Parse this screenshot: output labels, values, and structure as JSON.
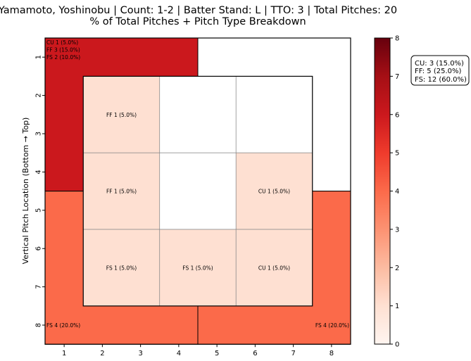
{
  "chart_data": {
    "type": "heatmap",
    "title": "Yamamoto, Yoshinobu | Count: 1-2 | Batter Stand: L | TTO: 3 | Total Pitches: 20",
    "subtitle": "% of Total Pitches + Pitch Type Breakdown",
    "xlabel": "",
    "ylabel": "Vertical Pitch Location (Bottom → Top)",
    "x_ticks": [
      "1",
      "2",
      "3",
      "4",
      "5",
      "6",
      "7",
      "8"
    ],
    "y_ticks": [
      "1",
      "2",
      "3",
      "4",
      "5",
      "6",
      "7",
      "8"
    ],
    "colorbar": {
      "min": 0,
      "max": 8,
      "ticks": [
        "0",
        "1",
        "2",
        "3",
        "4",
        "5",
        "6",
        "7",
        "8"
      ],
      "colormap": "Reds"
    },
    "zones": [
      {
        "zone": "outer-top-left",
        "value": 6,
        "labels": [
          "CU 1 (5.0%)",
          "FF 3 (15.0%)",
          "FS 2 (10.0%)"
        ]
      },
      {
        "zone": "outer-top-right",
        "value": 0,
        "labels": []
      },
      {
        "zone": "outer-bottom-left",
        "value": 4,
        "labels": [
          "FS 4 (20.0%)"
        ]
      },
      {
        "zone": "outer-bottom-right",
        "value": 4,
        "labels": [
          "FS 4 (20.0%)"
        ]
      },
      {
        "zone": "inner-r1-c1",
        "value": 1,
        "labels": [
          "FF 1 (5.0%)"
        ]
      },
      {
        "zone": "inner-r1-c2",
        "value": 0,
        "labels": []
      },
      {
        "zone": "inner-r1-c3",
        "value": 0,
        "labels": []
      },
      {
        "zone": "inner-r2-c1",
        "value": 1,
        "labels": [
          "FF 1 (5.0%)"
        ]
      },
      {
        "zone": "inner-r2-c2",
        "value": 0,
        "labels": []
      },
      {
        "zone": "inner-r2-c3",
        "value": 1,
        "labels": [
          "CU 1 (5.0%)"
        ]
      },
      {
        "zone": "inner-r3-c1",
        "value": 1,
        "labels": [
          "FS 1 (5.0%)"
        ]
      },
      {
        "zone": "inner-r3-c2",
        "value": 1,
        "labels": [
          "FS 1 (5.0%)"
        ]
      },
      {
        "zone": "inner-r3-c3",
        "value": 1,
        "labels": [
          "CU 1 (5.0%)"
        ]
      }
    ],
    "summary": [
      "CU: 3 (15.0%)",
      "FF: 5 (25.0%)",
      "FS: 12 (60.0%)"
    ]
  }
}
